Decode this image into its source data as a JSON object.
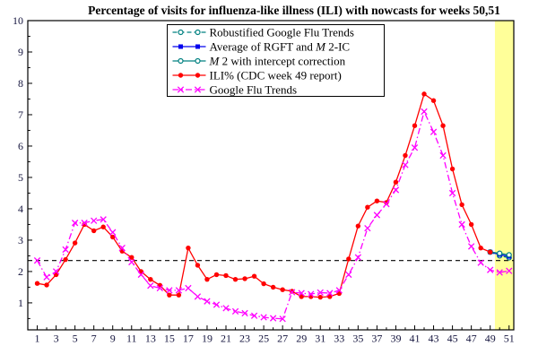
{
  "chart_data": {
    "type": "line",
    "title": "Percentage of visits for influenza-like illness (ILI) with nowcasts for weeks 50,51",
    "xlabel": "",
    "ylabel": "",
    "xlim": [
      0,
      51.5
    ],
    "ylim": [
      0.14,
      10
    ],
    "grid": false,
    "x_tick_labels": [
      "1",
      "3",
      "5",
      "7",
      "9",
      "11",
      "13",
      "15",
      "17",
      "19",
      "21",
      "23",
      "25",
      "27",
      "29",
      "31",
      "33",
      "35",
      "37",
      "39",
      "41",
      "43",
      "45",
      "47",
      "49",
      "51"
    ],
    "x_tick_values": [
      1,
      3,
      5,
      7,
      9,
      11,
      13,
      15,
      17,
      19,
      21,
      23,
      25,
      27,
      29,
      31,
      33,
      35,
      37,
      39,
      41,
      43,
      45,
      47,
      49,
      51
    ],
    "y_tick_labels": [
      "1",
      "2",
      "3",
      "4",
      "5",
      "6",
      "7",
      "8",
      "9",
      "10"
    ],
    "y_tick_values": [
      1,
      2,
      3,
      4,
      5,
      6,
      7,
      8,
      9,
      10
    ],
    "baseline": {
      "value": 2.35,
      "style": "dashed",
      "color": "#000000"
    },
    "nowcast_band": {
      "x_start": 49.5,
      "x_end": 51.5,
      "color": "#ffff99"
    },
    "legend_position": "top-center",
    "series": [
      {
        "id": "rgft",
        "label": "Robustified Google Flu Trends",
        "label_parts": [
          [
            "n",
            "Robustified Google Flu Trends"
          ]
        ],
        "color": "#008080",
        "style": "dashed",
        "marker": "circle-open",
        "x": [
          49,
          50,
          51
        ],
        "values": [
          2.62,
          2.5,
          2.44
        ]
      },
      {
        "id": "avg_rgft_m2ic",
        "label": "Average of RGFT and M 2-IC",
        "label_parts": [
          [
            "n",
            "Average of RGFT and "
          ],
          [
            "i",
            "M"
          ],
          [
            "n",
            " 2-IC"
          ]
        ],
        "color": "#0000ee",
        "style": "solid",
        "marker": "square-filled",
        "x": [
          49,
          50,
          51
        ],
        "values": [
          2.62,
          2.54,
          2.48
        ]
      },
      {
        "id": "m2ic",
        "label": "M 2 with intercept correction",
        "label_parts": [
          [
            "i",
            "M"
          ],
          [
            "n",
            " 2 with intercept correction"
          ]
        ],
        "color": "#008080",
        "style": "solid",
        "marker": "circle-open",
        "x": [
          49,
          50,
          51
        ],
        "values": [
          2.62,
          2.58,
          2.53
        ]
      },
      {
        "id": "ili",
        "label": "ILI% (CDC week 49 report)",
        "label_parts": [
          [
            "n",
            "ILI% (CDC week 49 report)"
          ]
        ],
        "color": "#ff0000",
        "style": "solid",
        "marker": "circle-filled",
        "x_first": 1,
        "values": [
          1.62,
          1.57,
          1.9,
          2.38,
          2.91,
          3.5,
          3.3,
          3.42,
          3.1,
          2.65,
          2.45,
          2.0,
          1.75,
          1.56,
          1.25,
          1.25,
          2.75,
          2.2,
          1.75,
          1.9,
          1.87,
          1.75,
          1.77,
          1.85,
          1.61,
          1.5,
          1.42,
          1.37,
          1.2,
          1.2,
          1.18,
          1.2,
          1.3,
          2.4,
          3.45,
          4.05,
          4.25,
          4.2,
          4.85,
          5.7,
          6.65,
          7.66,
          7.45,
          6.65,
          5.27,
          4.13,
          3.5,
          2.75,
          2.62
        ]
      },
      {
        "id": "gft",
        "label": "Google Flu Trends",
        "label_parts": [
          [
            "n",
            "Google Flu Trends"
          ]
        ],
        "color": "#ff00ff",
        "style": "dashdot",
        "marker": "x",
        "x_first": 1,
        "values": [
          2.35,
          1.82,
          2.0,
          2.7,
          3.55,
          3.55,
          3.62,
          3.66,
          3.25,
          2.75,
          2.3,
          1.9,
          1.55,
          1.47,
          1.4,
          1.4,
          1.47,
          1.2,
          1.05,
          0.94,
          0.83,
          0.73,
          0.67,
          0.59,
          0.54,
          0.51,
          0.49,
          1.34,
          1.31,
          1.28,
          1.33,
          1.31,
          1.4,
          1.9,
          2.45,
          3.38,
          3.8,
          4.15,
          4.6,
          5.4,
          5.95,
          7.1,
          6.45,
          5.7,
          4.5,
          3.5,
          2.8,
          2.28,
          2.05,
          1.97,
          2.02
        ]
      }
    ]
  },
  "styles": {
    "axis_color": "#000000",
    "tick_label_color": "#16163f",
    "title_color": "#000000",
    "legend_border_color": "#000000",
    "legend_bg_color": "#ffffff",
    "background_color": "#ffffff"
  }
}
